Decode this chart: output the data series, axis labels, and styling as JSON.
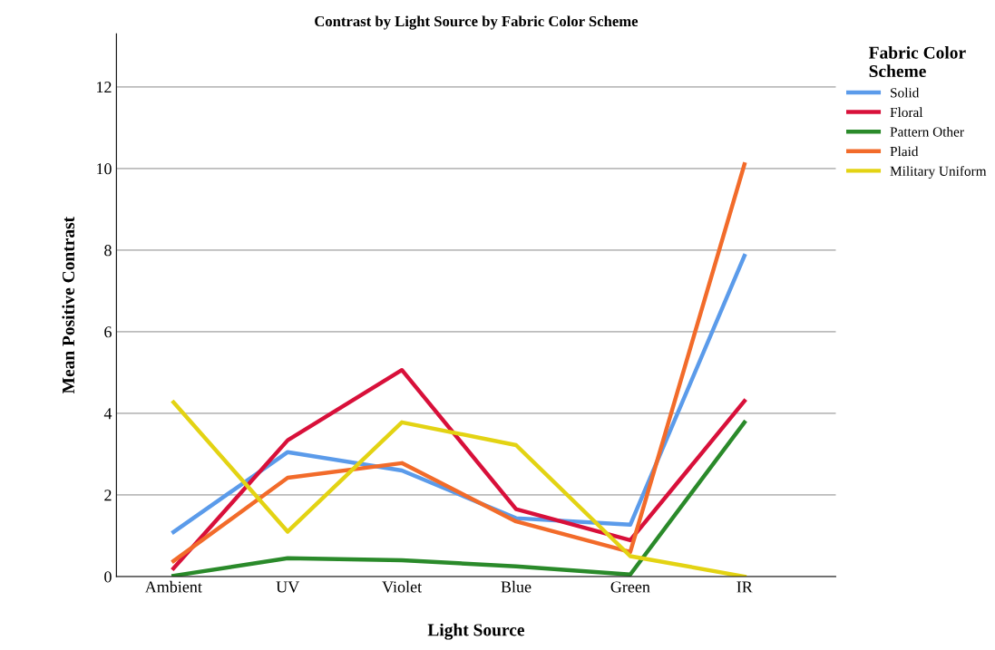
{
  "chart_data": {
    "type": "line",
    "title": "Contrast by Light Source by Fabric Color Scheme",
    "xlabel": "Light Source",
    "ylabel": "Mean Positive Contrast",
    "legend_title": "Fabric Color Scheme",
    "legend": "right",
    "categories": [
      "Ambient",
      "UV",
      "Violet",
      "Blue",
      "Green",
      "IR"
    ],
    "series": [
      {
        "name": "Solid",
        "color": "#5b9bea",
        "values": [
          1.09,
          3.05,
          2.6,
          1.43,
          1.27,
          7.86
        ]
      },
      {
        "name": "Floral",
        "color": "#d8103a",
        "values": [
          0.2,
          3.34,
          5.06,
          1.65,
          0.89,
          4.3
        ]
      },
      {
        "name": "Pattern Other",
        "color": "#2a8a2a",
        "values": [
          0.02,
          0.45,
          0.4,
          0.25,
          0.05,
          3.78
        ]
      },
      {
        "name": "Plaid",
        "color": "#f26b2a",
        "values": [
          0.38,
          2.42,
          2.78,
          1.35,
          0.6,
          10.1
        ]
      },
      {
        "name": "Military Uniform",
        "color": "#e3d313",
        "values": [
          4.27,
          1.1,
          3.78,
          3.22,
          0.5,
          0.0
        ]
      }
    ],
    "ylim": [
      0,
      13.3
    ],
    "yticks": [
      0,
      2,
      4,
      6,
      8,
      10,
      12
    ],
    "grid": "y"
  }
}
